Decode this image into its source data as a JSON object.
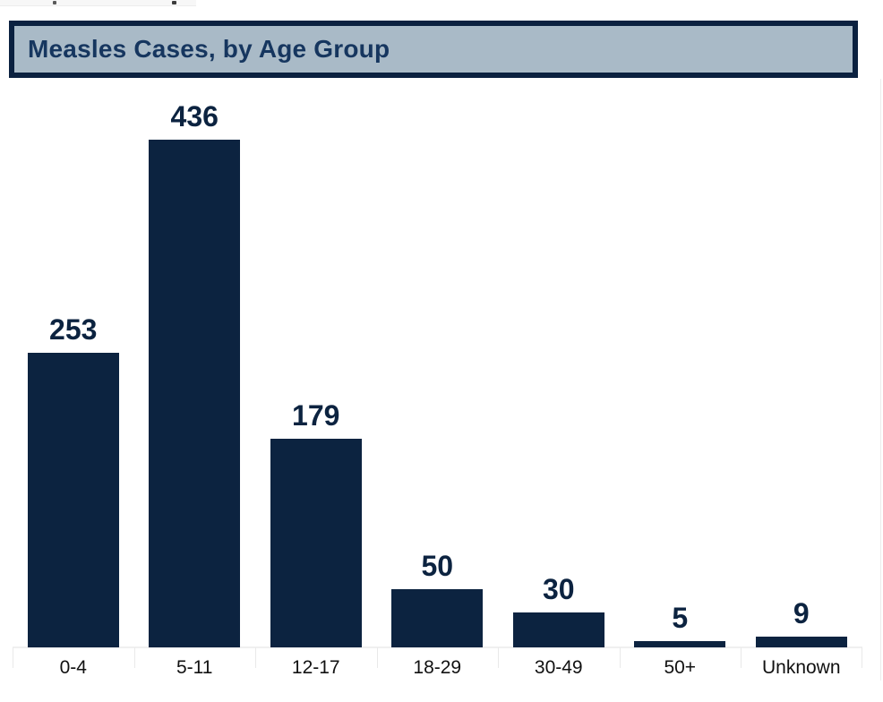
{
  "header": {
    "title": "Measles Cases, by Age Group"
  },
  "colors": {
    "bar": "#0c2340",
    "title_text": "#16365f",
    "title_background": "#a9bac7",
    "title_border": "#0b2140",
    "axis_label": "#111111",
    "gridline": "#e9e9e9",
    "toolbar_strip_background": "#f7f7f7"
  },
  "chart_data": {
    "type": "bar",
    "title": "Measles Cases, by Age Group",
    "categories": [
      "0-4",
      "5-11",
      "12-17",
      "18-29",
      "30-49",
      "50+",
      "Unknown"
    ],
    "values": [
      253,
      436,
      179,
      50,
      30,
      5,
      9
    ],
    "xlabel": "",
    "ylabel": "",
    "ylim": [
      0,
      480
    ],
    "grid": false,
    "legend": false,
    "bar_color": "#0c2340",
    "data_labels": true
  }
}
